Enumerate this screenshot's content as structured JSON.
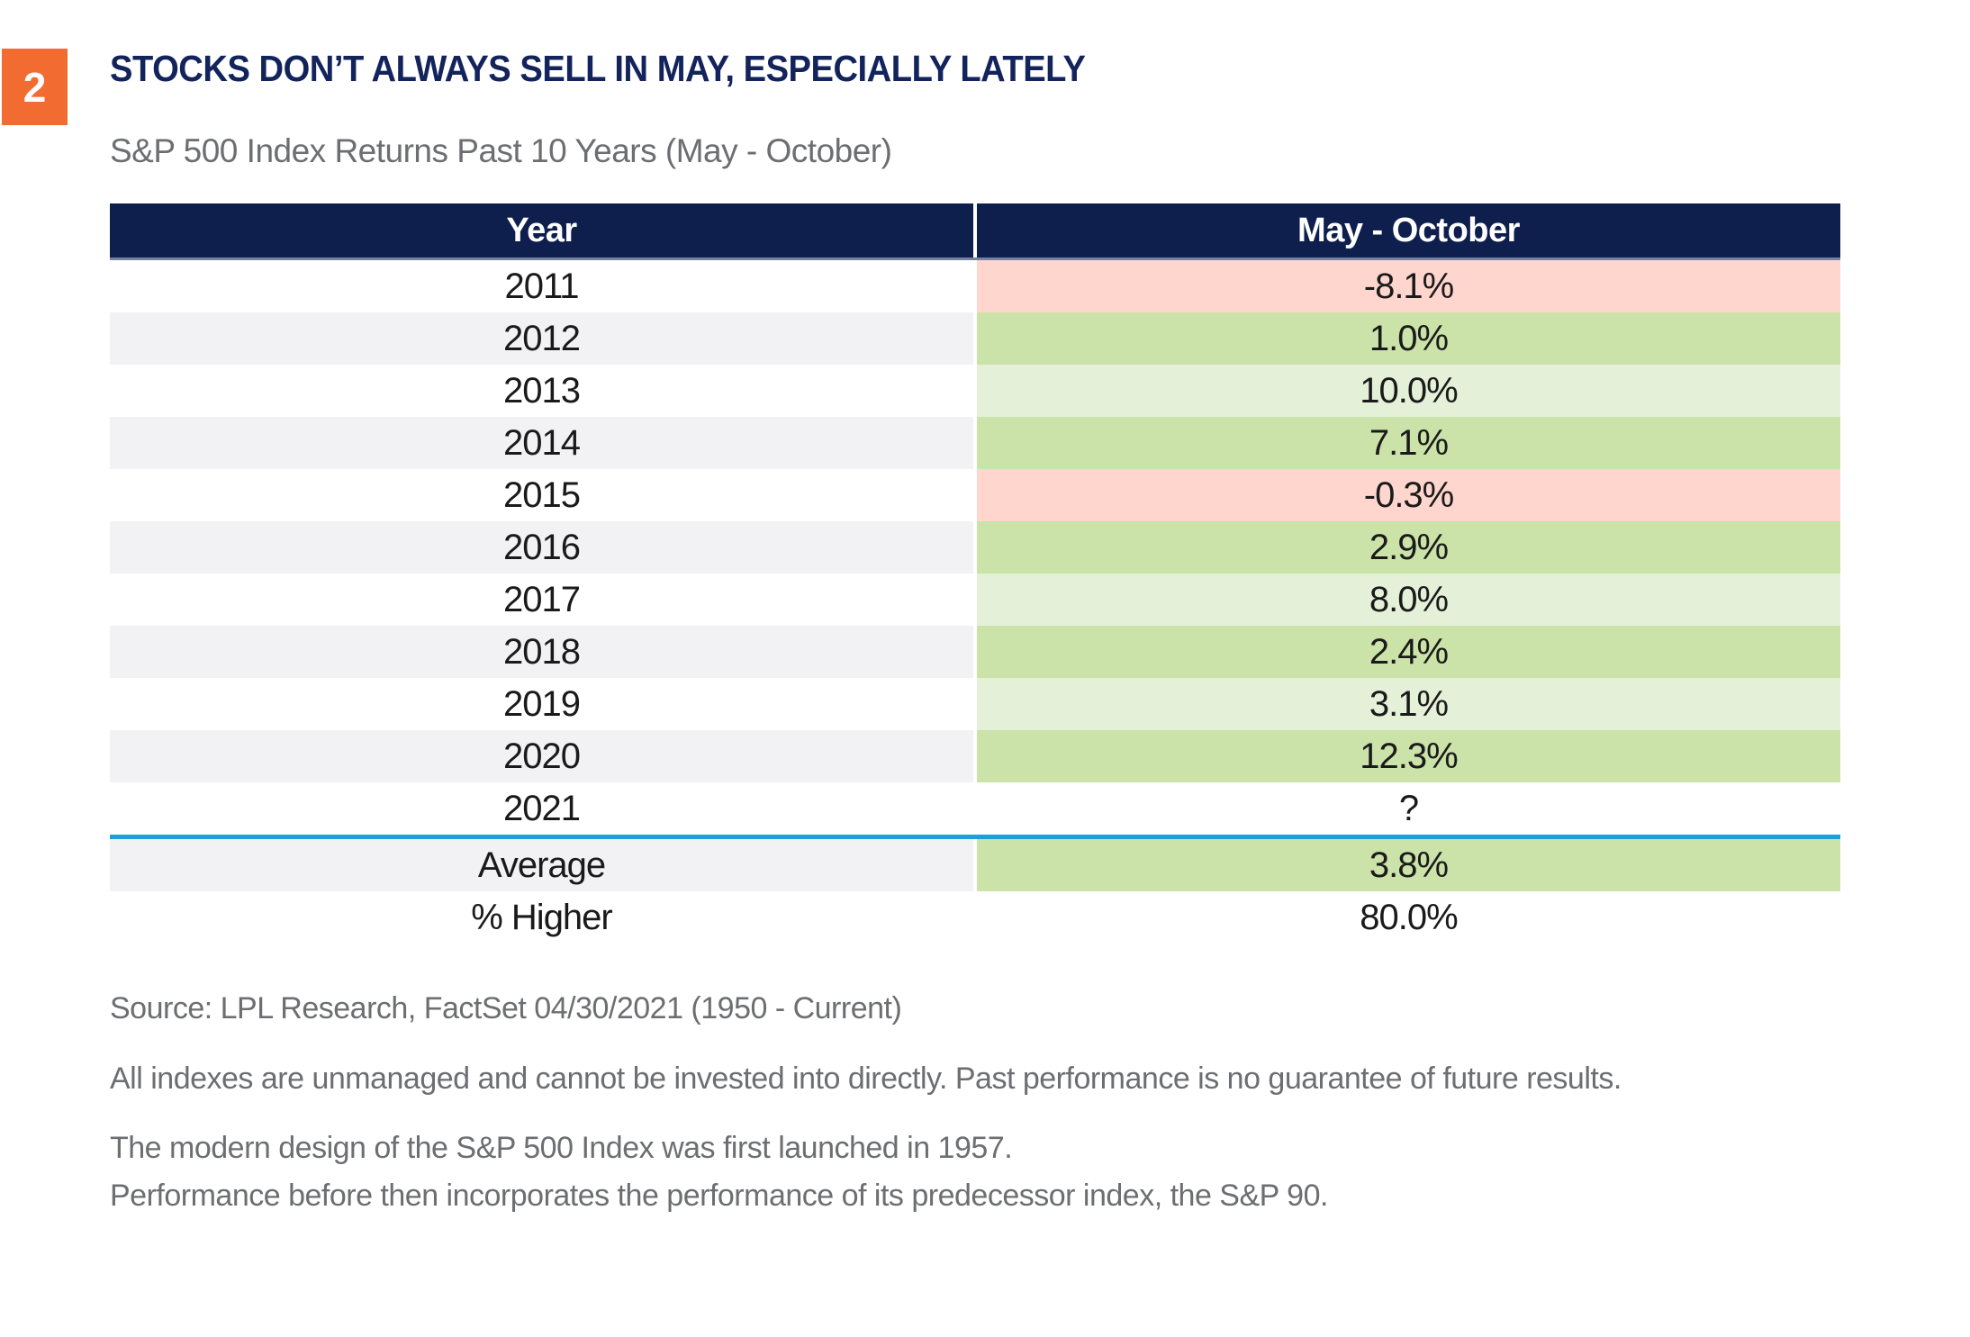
{
  "header": {
    "badge": "2",
    "title": "STOCKS DON’T ALWAYS SELL IN MAY, ESPECIALLY LATELY",
    "subtitle": "S&P 500 Index Returns Past 10 Years (May - October)"
  },
  "chart_data": {
    "type": "table",
    "title": "STOCKS DON’T ALWAYS SELL IN MAY, ESPECIALLY LATELY",
    "subtitle": "S&P 500 Index Returns Past 10 Years (May - October)",
    "columns": [
      "Year",
      "May - October"
    ],
    "rows": [
      {
        "year": "2011",
        "value": "-8.1%",
        "value_numeric": -8.1,
        "tone": "negative"
      },
      {
        "year": "2012",
        "value": "1.0%",
        "value_numeric": 1.0,
        "tone": "positive"
      },
      {
        "year": "2013",
        "value": "10.0%",
        "value_numeric": 10.0,
        "tone": "positive-light"
      },
      {
        "year": "2014",
        "value": "7.1%",
        "value_numeric": 7.1,
        "tone": "positive"
      },
      {
        "year": "2015",
        "value": "-0.3%",
        "value_numeric": -0.3,
        "tone": "negative"
      },
      {
        "year": "2016",
        "value": "2.9%",
        "value_numeric": 2.9,
        "tone": "positive"
      },
      {
        "year": "2017",
        "value": "8.0%",
        "value_numeric": 8.0,
        "tone": "positive-light"
      },
      {
        "year": "2018",
        "value": "2.4%",
        "value_numeric": 2.4,
        "tone": "positive"
      },
      {
        "year": "2019",
        "value": "3.1%",
        "value_numeric": 3.1,
        "tone": "positive-light"
      },
      {
        "year": "2020",
        "value": "12.3%",
        "value_numeric": 12.3,
        "tone": "positive"
      },
      {
        "year": "2021",
        "value": "?",
        "value_numeric": null,
        "tone": "none"
      }
    ],
    "summary_rows": [
      {
        "label": "Average",
        "value": "3.8%",
        "value_numeric": 3.8,
        "tone": "positive"
      },
      {
        "label": "% Higher",
        "value": "80.0%",
        "value_numeric": 80.0,
        "tone": "none"
      }
    ]
  },
  "footer": {
    "source": "Source: LPL Research, FactSet 04/30/2021 (1950 - Current)",
    "disclosure1": "All indexes are unmanaged and cannot be invested into directly. Past performance is no guarantee of future results.",
    "disclosure2_line1": "The modern design of the S&P 500 Index was first launched in 1957.",
    "disclosure2_line2": "Performance before then incorporates the performance of its predecessor index, the S&P 90."
  },
  "colors": {
    "accent_orange": "#f26b31",
    "header_navy": "#0e1f4e",
    "title_navy": "#13235b",
    "positive_green": "#cbe2a8",
    "positive_light_green": "#e4f0d7",
    "negative_pink": "#ffd6ce",
    "stripe_gray": "#f2f2f4",
    "divider_blue": "#1ba0dc",
    "header_underline": "#75819d",
    "text_gray": "#6d6e71"
  }
}
